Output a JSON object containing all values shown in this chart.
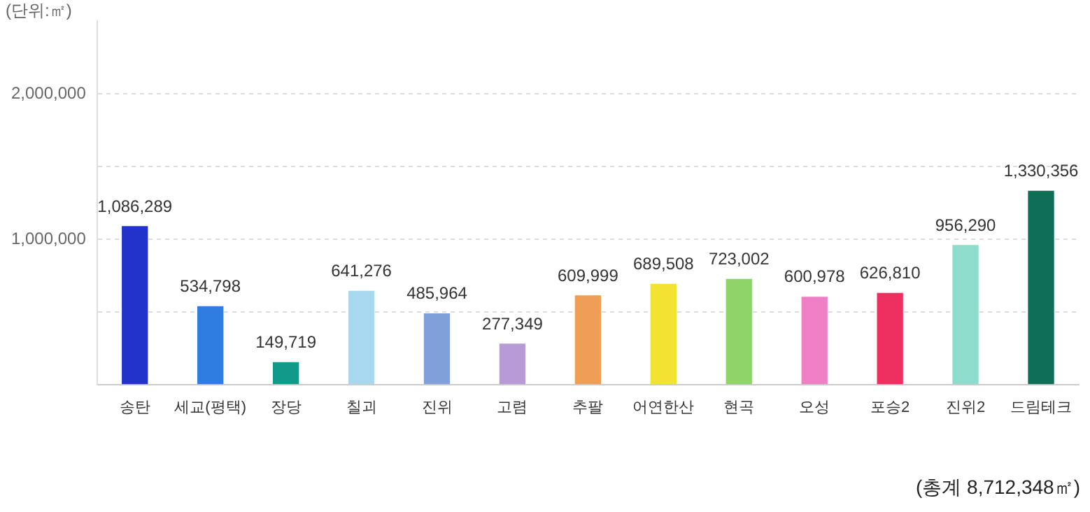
{
  "chart_data": {
    "type": "bar",
    "ylabel": "(단위:㎡)",
    "categories": [
      "송탄",
      "세교(평택)",
      "장당",
      "칠괴",
      "진위",
      "고렴",
      "추팔",
      "어연한산",
      "현곡",
      "오성",
      "포승2",
      "진위2",
      "드림테크"
    ],
    "values": [
      1086289,
      534798,
      149719,
      641276,
      485964,
      277349,
      609999,
      689508,
      723002,
      600978,
      626810,
      956290,
      1330356
    ],
    "colors": [
      "#2233cc",
      "#2f7de1",
      "#0f9a8a",
      "#a8d8ee",
      "#7fa0d8",
      "#b89ad6",
      "#ef9e55",
      "#f2e232",
      "#8fd468",
      "#ef7fc5",
      "#ee3060",
      "#8edccb",
      "#0f6e56"
    ],
    "ylim": [
      0,
      2500000
    ],
    "yticks": [
      {
        "value": 0,
        "label": null
      },
      {
        "value": 500000,
        "label": null
      },
      "1,000,000",
      {
        "value": 1500000,
        "label": null
      },
      {
        "value": 2000000,
        "label": "2,000,000"
      }
    ],
    "grid": "y",
    "value_labels": [
      "1,086,289",
      "534,798",
      "149,719",
      "641,276",
      "485,964",
      "277,349",
      "609,999",
      "689,508",
      "723,002",
      "600,978",
      "626,810",
      "956,290",
      "1,330,356"
    ],
    "annotations": [
      "(총계 8,712,348㎡)"
    ]
  }
}
